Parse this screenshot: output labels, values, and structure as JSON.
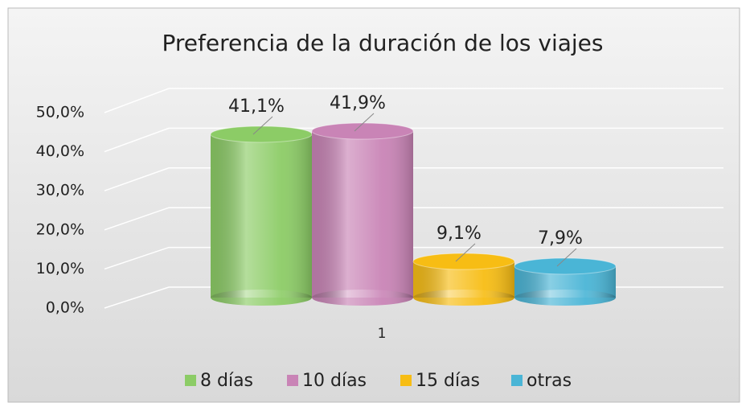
{
  "chart_data": {
    "type": "bar3d",
    "title": "Preferencia de la duración de los viajes",
    "categories": [
      "1"
    ],
    "series": [
      {
        "name": "8 días",
        "color": "#8ccc66",
        "values": [
          41.1
        ],
        "value_labels": [
          "41,1%"
        ]
      },
      {
        "name": "10 días",
        "color": "#c984b6",
        "values": [
          41.9
        ],
        "value_labels": [
          "41,9%"
        ]
      },
      {
        "name": "15 días",
        "color": "#f7bd14",
        "values": [
          9.1
        ],
        "value_labels": [
          "9,1%"
        ]
      },
      {
        "name": "otras",
        "color": "#4ab5d6",
        "values": [
          7.9
        ],
        "value_labels": [
          "7,9%"
        ]
      }
    ],
    "ylim": [
      0,
      50
    ],
    "yticks": [
      {
        "value": 0,
        "label": "0,0%"
      },
      {
        "value": 10,
        "label": "10,0%"
      },
      {
        "value": 20,
        "label": "20,0%"
      },
      {
        "value": 30,
        "label": "30,0%"
      },
      {
        "value": 40,
        "label": "40,0%"
      },
      {
        "value": 50,
        "label": "50,0%"
      }
    ],
    "grid": true,
    "legend": "bottom"
  }
}
